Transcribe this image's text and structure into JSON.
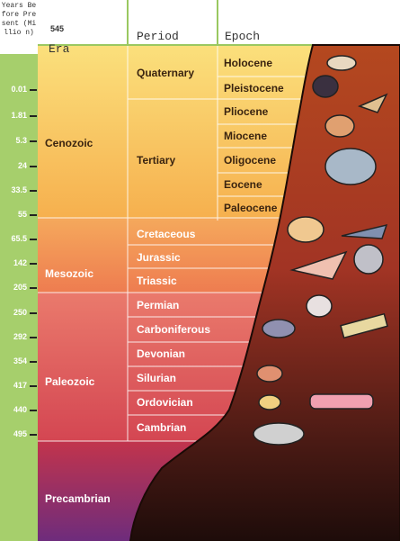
{
  "header": {
    "years_label": "Years Before Present (Millio n)",
    "top_year": "545",
    "era": "Era",
    "period": "Period",
    "epoch": "Epoch"
  },
  "years": [
    "0.01",
    "1.81",
    "5.3",
    "24",
    "33.5",
    "55",
    "65.5",
    "142",
    "205",
    "250",
    "292",
    "354",
    "417",
    "440",
    "495"
  ],
  "eras": [
    "Cenozoic",
    "Mesozoic",
    "Paleozoic",
    "Precambrian"
  ],
  "periods": [
    "Quaternary",
    "Tertiary",
    "Cretaceous",
    "Jurassic",
    "Triassic",
    "Permian",
    "Carboniferous",
    "Devonian",
    "Silurian",
    "Ordovician",
    "Cambrian"
  ],
  "epochs": [
    "Holocene",
    "Pleistocene",
    "Pliocene",
    "Miocene",
    "Oligocene",
    "Eocene",
    "Paleocene"
  ]
}
